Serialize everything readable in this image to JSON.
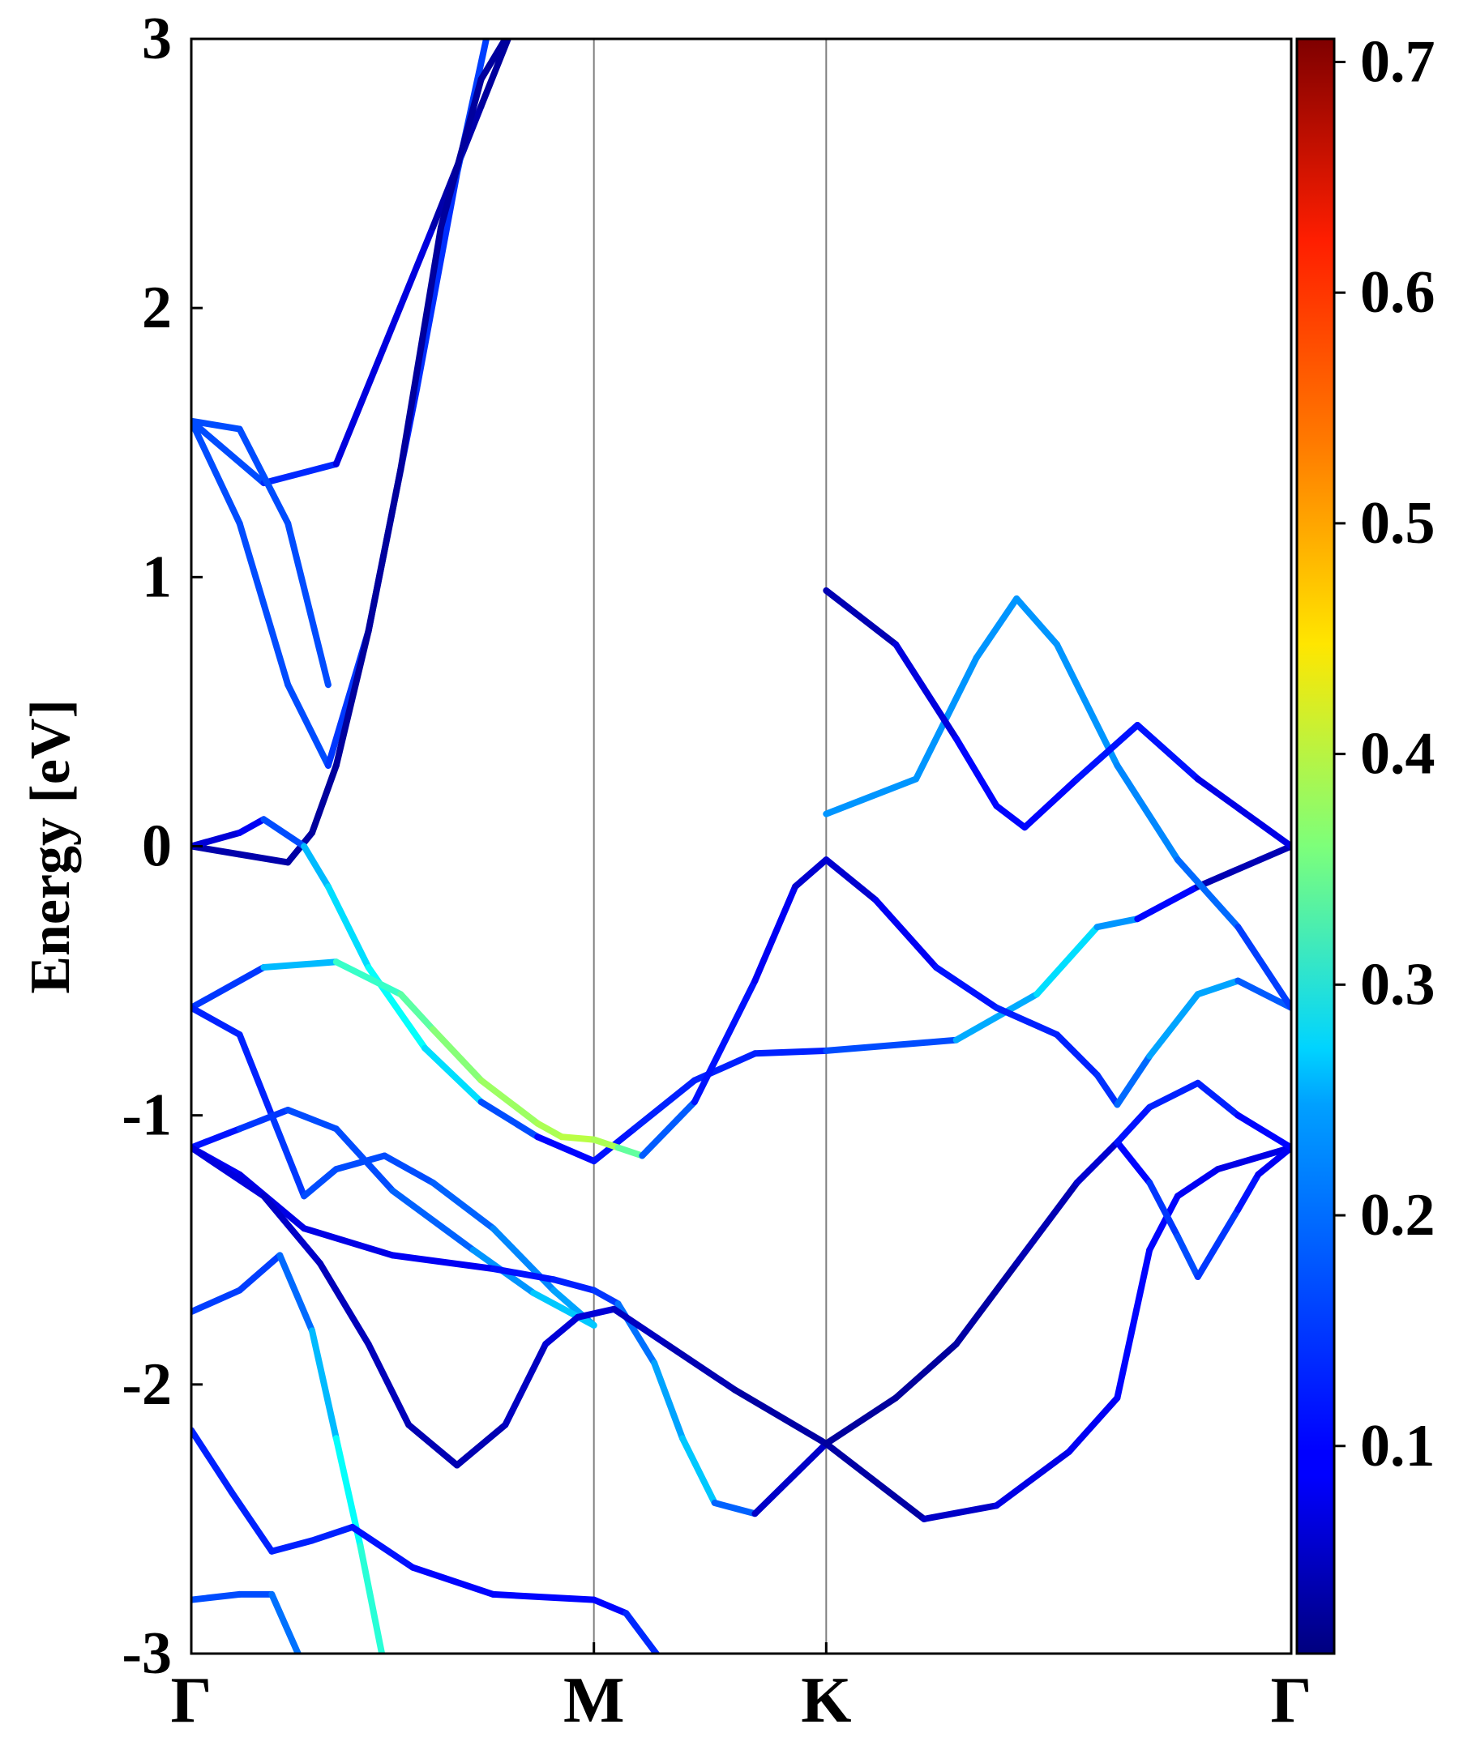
{
  "chart_data": {
    "type": "line",
    "title": "",
    "ylabel": "Energy [eV]",
    "xlabel": "",
    "ylim": [
      -3,
      3
    ],
    "k_path": {
      "labels": [
        "Γ",
        "M",
        "K",
        "Γ"
      ],
      "positions": [
        0,
        1,
        1.577,
        2.732
      ]
    },
    "y_ticks": [
      "-3",
      "-2",
      "-1",
      "0",
      "1",
      "2",
      "3"
    ],
    "grid": false,
    "colorbar": {
      "colormap": "jet",
      "range": [
        0.01,
        0.71
      ],
      "tick_values": [
        0.1,
        0.2,
        0.3,
        0.4,
        0.5,
        0.6,
        0.7
      ],
      "tick_labels": [
        "0.1",
        "0.2",
        "0.3",
        "0.4",
        "0.5",
        "0.6",
        "0.7"
      ]
    },
    "series": [
      {
        "name": "band-a",
        "points": [
          [
            0,
            1.58,
            0.15
          ],
          [
            0.18,
            1.35,
            0.15
          ],
          [
            0.36,
            1.42,
            0.1
          ],
          [
            0.6,
            2.3,
            0.05
          ],
          [
            0.72,
            2.75,
            0.03
          ],
          [
            0.8,
            3.05,
            0.03
          ]
        ]
      },
      {
        "name": "band-b",
        "points": [
          [
            0,
            1.58,
            0.15
          ],
          [
            0.12,
            1.2,
            0.15
          ],
          [
            0.24,
            0.6,
            0.15
          ],
          [
            0.34,
            0.3,
            0.15
          ],
          [
            0.44,
            0.8,
            0.12
          ],
          [
            0.56,
            1.7,
            0.12
          ],
          [
            0.66,
            2.5,
            0.14
          ],
          [
            0.74,
            3.05,
            0.14
          ]
        ]
      },
      {
        "name": "band-c",
        "points": [
          [
            0,
            0.0,
            0.04
          ],
          [
            0.12,
            -0.03,
            0.04
          ],
          [
            0.24,
            -0.06,
            0.04
          ],
          [
            0.3,
            0.05,
            0.03
          ],
          [
            0.36,
            0.3,
            0.03
          ],
          [
            0.44,
            0.8,
            0.03
          ],
          [
            0.52,
            1.4,
            0.03
          ],
          [
            0.62,
            2.3,
            0.03
          ],
          [
            0.72,
            2.85,
            0.03
          ],
          [
            0.8,
            3.05,
            0.03
          ]
        ]
      },
      {
        "name": "band-d",
        "points": [
          [
            0,
            0.0,
            0.06
          ],
          [
            0.12,
            0.05,
            0.08
          ],
          [
            0.18,
            0.1,
            0.1
          ],
          [
            0.28,
            0.0,
            0.2
          ],
          [
            0.34,
            -0.15,
            0.25
          ],
          [
            0.44,
            -0.45,
            0.25
          ],
          [
            0.58,
            -0.75,
            0.3
          ],
          [
            0.72,
            -0.95,
            0.2
          ],
          [
            0.86,
            -1.08,
            0.1
          ],
          [
            1.0,
            -1.17,
            0.1
          ],
          [
            1.1,
            -1.05,
            0.12
          ],
          [
            1.25,
            -0.87,
            0.12
          ],
          [
            1.4,
            -0.77,
            0.12
          ],
          [
            1.577,
            -0.76,
            0.12
          ],
          [
            1.9,
            -0.72,
            0.18
          ],
          [
            2.1,
            -0.55,
            0.25
          ],
          [
            2.25,
            -0.3,
            0.25
          ],
          [
            2.35,
            -0.27,
            0.15
          ],
          [
            2.5,
            -0.15,
            0.05
          ],
          [
            2.732,
            0.0,
            0.04
          ]
        ]
      },
      {
        "name": "band-e",
        "points": [
          [
            0,
            -0.6,
            0.12
          ],
          [
            0.18,
            -0.45,
            0.15
          ],
          [
            0.36,
            -0.43,
            0.3
          ],
          [
            0.52,
            -0.55,
            0.32
          ],
          [
            0.6,
            -0.68,
            0.35
          ],
          [
            0.72,
            -0.87,
            0.38
          ],
          [
            0.86,
            -1.03,
            0.38
          ],
          [
            0.92,
            -1.08,
            0.4
          ],
          [
            1.0,
            -1.09,
            0.4
          ],
          [
            1.06,
            -1.12,
            0.38
          ],
          [
            1.12,
            -1.15,
            0.3
          ]
        ]
      },
      {
        "name": "band-f",
        "points": [
          [
            1.12,
            -1.15,
            0.2
          ],
          [
            1.25,
            -0.95,
            0.12
          ],
          [
            1.4,
            -0.5,
            0.1
          ],
          [
            1.5,
            -0.15,
            0.08
          ],
          [
            1.577,
            -0.05,
            0.05
          ],
          [
            1.7,
            -0.2,
            0.08
          ],
          [
            1.85,
            -0.45,
            0.1
          ],
          [
            2.0,
            -0.6,
            0.12
          ],
          [
            2.15,
            -0.7,
            0.12
          ],
          [
            2.25,
            -0.85,
            0.12
          ],
          [
            2.3,
            -0.96,
            0.14
          ],
          [
            2.38,
            -0.78,
            0.2
          ],
          [
            2.5,
            -0.55,
            0.22
          ],
          [
            2.6,
            -0.5,
            0.2
          ],
          [
            2.732,
            -0.6,
            0.12
          ]
        ]
      },
      {
        "name": "band-g",
        "points": [
          [
            0,
            -0.6,
            0.12
          ],
          [
            0.12,
            -0.7,
            0.12
          ],
          [
            0.2,
            -1.0,
            0.12
          ],
          [
            0.28,
            -1.3,
            0.15
          ],
          [
            0.36,
            -1.2,
            0.15
          ],
          [
            0.48,
            -1.15,
            0.15
          ],
          [
            0.6,
            -1.25,
            0.15
          ],
          [
            0.75,
            -1.42,
            0.18
          ],
          [
            0.9,
            -1.65,
            0.2
          ],
          [
            1.0,
            -1.78,
            0.22
          ]
        ]
      },
      {
        "name": "band-h",
        "points": [
          [
            0,
            -1.12,
            0.1
          ],
          [
            0.12,
            -1.05,
            0.12
          ],
          [
            0.24,
            -0.98,
            0.15
          ],
          [
            0.36,
            -1.05,
            0.15
          ],
          [
            0.5,
            -1.28,
            0.15
          ],
          [
            0.7,
            -1.5,
            0.18
          ],
          [
            0.85,
            -1.66,
            0.22
          ],
          [
            1.0,
            -1.78,
            0.25
          ]
        ]
      },
      {
        "name": "band-i",
        "points": [
          [
            0,
            -1.12,
            0.1
          ],
          [
            0.12,
            -1.22,
            0.08
          ],
          [
            0.28,
            -1.42,
            0.08
          ],
          [
            0.5,
            -1.52,
            0.08
          ],
          [
            0.75,
            -1.57,
            0.1
          ],
          [
            0.9,
            -1.61,
            0.12
          ],
          [
            1.0,
            -1.65,
            0.12
          ],
          [
            1.06,
            -1.7,
            0.15
          ],
          [
            1.15,
            -1.92,
            0.2
          ],
          [
            1.22,
            -2.2,
            0.22
          ],
          [
            1.3,
            -2.44,
            0.25
          ],
          [
            1.4,
            -2.48,
            0.08
          ],
          [
            1.577,
            -2.22,
            0.04
          ]
        ]
      },
      {
        "name": "band-j",
        "points": [
          [
            0,
            -1.12,
            0.08
          ],
          [
            0.18,
            -1.3,
            0.07
          ],
          [
            0.32,
            -1.55,
            0.05
          ],
          [
            0.44,
            -1.85,
            0.05
          ],
          [
            0.54,
            -2.15,
            0.05
          ],
          [
            0.66,
            -2.3,
            0.04
          ],
          [
            0.78,
            -2.15,
            0.05
          ],
          [
            0.88,
            -1.85,
            0.06
          ],
          [
            0.96,
            -1.75,
            0.08
          ],
          [
            1.05,
            -1.72,
            0.06
          ],
          [
            1.18,
            -1.85,
            0.05
          ],
          [
            1.35,
            -2.02,
            0.04
          ],
          [
            1.577,
            -2.22,
            0.03
          ],
          [
            1.82,
            -2.5,
            0.04
          ],
          [
            2.0,
            -2.45,
            0.08
          ],
          [
            2.18,
            -2.25,
            0.08
          ],
          [
            2.3,
            -2.05,
            0.1
          ],
          [
            2.38,
            -1.5,
            0.1
          ],
          [
            2.45,
            -1.3,
            0.1
          ],
          [
            2.55,
            -1.2,
            0.08
          ],
          [
            2.732,
            -1.12,
            0.08
          ]
        ]
      },
      {
        "name": "band-k",
        "points": [
          [
            1.577,
            -2.22,
            0.03
          ],
          [
            1.75,
            -2.05,
            0.03
          ],
          [
            1.9,
            -1.85,
            0.03
          ],
          [
            2.05,
            -1.55,
            0.04
          ],
          [
            2.2,
            -1.25,
            0.05
          ],
          [
            2.3,
            -1.1,
            0.08
          ],
          [
            2.38,
            -1.25,
            0.12
          ],
          [
            2.45,
            -1.45,
            0.15
          ],
          [
            2.5,
            -1.6,
            0.15
          ],
          [
            2.6,
            -1.35,
            0.12
          ],
          [
            2.65,
            -1.22,
            0.1
          ],
          [
            2.732,
            -1.12,
            0.08
          ]
        ]
      },
      {
        "name": "band-l",
        "points": [
          [
            2.3,
            -1.1,
            0.1
          ],
          [
            2.38,
            -0.97,
            0.12
          ],
          [
            2.5,
            -0.88,
            0.12
          ],
          [
            2.6,
            -1.0,
            0.12
          ],
          [
            2.732,
            -1.12,
            0.08
          ]
        ]
      },
      {
        "name": "band-m",
        "points": [
          [
            0,
            -1.73,
            0.14
          ],
          [
            0.12,
            -1.65,
            0.14
          ],
          [
            0.22,
            -1.52,
            0.14
          ],
          [
            0.3,
            -1.8,
            0.2
          ],
          [
            0.36,
            -2.2,
            0.25
          ],
          [
            0.42,
            -2.6,
            0.3
          ],
          [
            0.48,
            -3.05,
            0.3
          ]
        ]
      },
      {
        "name": "band-n",
        "points": [
          [
            0,
            -2.17,
            0.12
          ],
          [
            0.1,
            -2.4,
            0.12
          ],
          [
            0.2,
            -2.62,
            0.12
          ],
          [
            0.3,
            -2.58,
            0.12
          ],
          [
            0.4,
            -2.53,
            0.12
          ],
          [
            0.55,
            -2.68,
            0.1
          ],
          [
            0.75,
            -2.78,
            0.1
          ],
          [
            1.0,
            -2.8,
            0.1
          ],
          [
            1.08,
            -2.85,
            0.1
          ],
          [
            1.18,
            -3.05,
            0.15
          ]
        ]
      },
      {
        "name": "band-o",
        "points": [
          [
            0,
            -2.8,
            0.15
          ],
          [
            0.12,
            -2.78,
            0.15
          ],
          [
            0.2,
            -2.78,
            0.15
          ],
          [
            0.28,
            -3.05,
            0.2
          ]
        ]
      },
      {
        "name": "band-p",
        "points": [
          [
            1.577,
            0.12,
            0.2
          ],
          [
            1.8,
            0.25,
            0.2
          ],
          [
            1.95,
            0.7,
            0.2
          ],
          [
            2.05,
            0.92,
            0.2
          ],
          [
            2.15,
            0.75,
            0.2
          ],
          [
            2.3,
            0.3,
            0.2
          ],
          [
            2.45,
            -0.05,
            0.18
          ],
          [
            2.6,
            -0.3,
            0.16
          ],
          [
            2.732,
            -0.6,
            0.12
          ]
        ]
      },
      {
        "name": "band-q",
        "points": [
          [
            1.577,
            0.95,
            0.04
          ],
          [
            1.75,
            0.75,
            0.05
          ],
          [
            1.9,
            0.4,
            0.1
          ],
          [
            2.0,
            0.15,
            0.1
          ],
          [
            2.07,
            0.07,
            0.1
          ],
          [
            2.2,
            0.25,
            0.1
          ],
          [
            2.35,
            0.45,
            0.12
          ],
          [
            2.5,
            0.25,
            0.1
          ],
          [
            2.732,
            0.0,
            0.06
          ]
        ]
      },
      {
        "name": "band-r",
        "points": [
          [
            0,
            1.58,
            0.15
          ],
          [
            0.12,
            1.55,
            0.15
          ],
          [
            0.24,
            1.2,
            0.15
          ],
          [
            0.34,
            0.6,
            0.15
          ]
        ]
      }
    ]
  }
}
